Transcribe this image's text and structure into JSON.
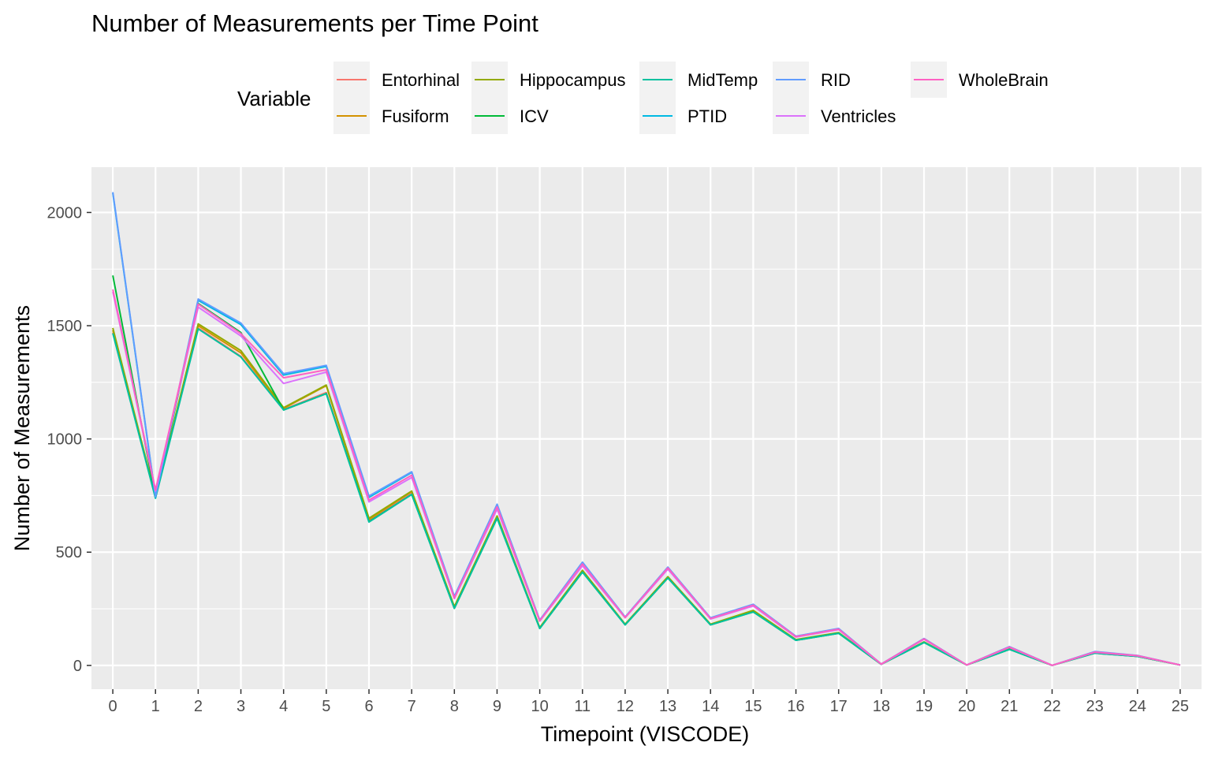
{
  "chart_data": {
    "type": "line",
    "title": "Number of Measurements per Time Point",
    "xlabel": "Timepoint (VISCODE)",
    "ylabel": "Number of Measurements",
    "legend_title": "Variable",
    "legend_position": "top",
    "grid": true,
    "xlim": [
      -0.5,
      25.5
    ],
    "ylim": [
      -105,
      2200
    ],
    "x": [
      0,
      1,
      2,
      3,
      4,
      5,
      6,
      7,
      8,
      9,
      10,
      11,
      12,
      13,
      14,
      15,
      16,
      17,
      18,
      19,
      20,
      21,
      22,
      23,
      24,
      25
    ],
    "x_ticks": [
      "0",
      "1",
      "2",
      "3",
      "4",
      "5",
      "6",
      "7",
      "8",
      "9",
      "10",
      "11",
      "12",
      "13",
      "14",
      "15",
      "16",
      "17",
      "18",
      "19",
      "20",
      "21",
      "22",
      "23",
      "24",
      "25"
    ],
    "y_ticks": [
      0,
      500,
      1000,
      1500,
      2000
    ],
    "y_tick_labels": [
      "0",
      "500",
      "1000",
      "1500",
      "2000"
    ],
    "colors": {
      "panel_bg": "#ebebeb",
      "grid": "#ffffff",
      "legend_key_bg": "#f2f2f2",
      "tick": "#333333"
    },
    "series": [
      {
        "name": "Entorhinal",
        "color": "#F8766D",
        "values": [
          1470,
          740,
          1490,
          1365,
          1130,
          1205,
          638,
          760,
          255,
          655,
          165,
          415,
          180,
          388,
          180,
          238,
          112,
          143,
          5,
          102,
          2,
          72,
          0,
          55,
          40,
          2
        ]
      },
      {
        "name": "Fusiform",
        "color": "#D39200",
        "values": [
          1480,
          742,
          1500,
          1380,
          1135,
          1235,
          645,
          768,
          258,
          658,
          166,
          418,
          181,
          390,
          181,
          242,
          113,
          144,
          5,
          103,
          2,
          73,
          0,
          56,
          40,
          2
        ]
      },
      {
        "name": "Hippocampus",
        "color": "#93AA00",
        "values": [
          1490,
          745,
          1508,
          1390,
          1138,
          1238,
          650,
          770,
          260,
          660,
          167,
          420,
          182,
          392,
          182,
          243,
          114,
          145,
          5,
          104,
          2,
          74,
          0,
          56,
          41,
          2
        ]
      },
      {
        "name": "ICV",
        "color": "#00BA38",
        "values": [
          1722,
          742,
          1598,
          1470,
          1128,
          1200,
          635,
          755,
          252,
          650,
          163,
          412,
          179,
          386,
          179,
          236,
          111,
          142,
          5,
          101,
          2,
          71,
          0,
          54,
          40,
          2
        ]
      },
      {
        "name": "MidTemp",
        "color": "#00C19F",
        "values": [
          1466,
          738,
          1486,
          1362,
          1128,
          1200,
          633,
          755,
          252,
          650,
          163,
          412,
          179,
          386,
          179,
          236,
          111,
          142,
          5,
          101,
          2,
          71,
          0,
          54,
          40,
          2
        ]
      },
      {
        "name": "PTID",
        "color": "#00B9E3",
        "values": [
          2085,
          742,
          1612,
          1505,
          1282,
          1320,
          742,
          852,
          302,
          708,
          199,
          452,
          212,
          432,
          209,
          268,
          128,
          162,
          6,
          118,
          2,
          82,
          0,
          60,
          43,
          2
        ]
      },
      {
        "name": "RID",
        "color": "#619CFF",
        "values": [
          2090,
          745,
          1618,
          1512,
          1288,
          1325,
          748,
          855,
          305,
          712,
          200,
          456,
          214,
          434,
          210,
          270,
          129,
          163,
          6,
          119,
          2,
          83,
          0,
          61,
          44,
          2
        ]
      },
      {
        "name": "Ventricles",
        "color": "#DB72FB",
        "values": [
          1650,
          770,
          1582,
          1455,
          1245,
          1295,
          722,
          830,
          295,
          690,
          195,
          440,
          210,
          425,
          205,
          262,
          125,
          158,
          5,
          115,
          2,
          80,
          0,
          58,
          42,
          2
        ]
      },
      {
        "name": "WholeBrain",
        "color": "#FF61C3",
        "values": [
          1660,
          775,
          1595,
          1465,
          1270,
          1305,
          730,
          840,
          298,
          700,
          197,
          448,
          211,
          430,
          207,
          266,
          127,
          160,
          6,
          117,
          2,
          81,
          0,
          59,
          43,
          2
        ]
      }
    ]
  }
}
